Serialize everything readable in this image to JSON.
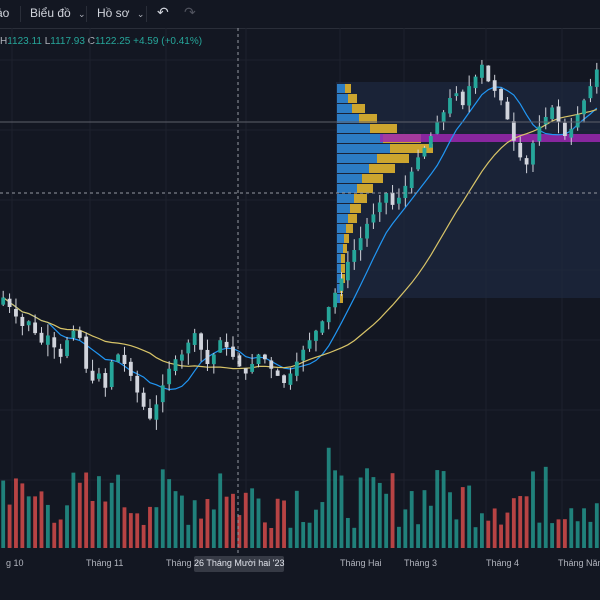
{
  "toolbar": {
    "item0": "ảo",
    "item1": "Biểu đồ",
    "item2": "Hồ sơ"
  },
  "legend": {
    "h_key": "H",
    "h_val": "1123.11",
    "l_key": "L",
    "l_val": "1117.93",
    "c_key": "C",
    "c_val": "1122.25",
    "change": "+4.59 (+0.41%)"
  },
  "colors": {
    "up": "#26a69a",
    "down": "#ef5350",
    "wick": "#d1d4dc",
    "ma_fast": "#2196f3",
    "ma_slow": "#d8c468",
    "vp_up": "#e0b42f",
    "vp_down": "#2f86d4",
    "vp_poc": "#9c27b0"
  },
  "crosshair": {
    "label": "26 Tháng Mười hai '23"
  },
  "chart_data": {
    "type": "candlestick",
    "x_ticks": [
      "g 10",
      "Tháng 11",
      "Tháng Mười h",
      "Tháng Hai",
      "Tháng 3",
      "Tháng 4",
      "Tháng Năm"
    ],
    "closes": [
      1120,
      1112,
      1104,
      1096,
      1100,
      1090,
      1082,
      1088,
      1078,
      1070,
      1084,
      1092,
      1086,
      1060,
      1050,
      1056,
      1044,
      1066,
      1072,
      1064,
      1054,
      1040,
      1028,
      1018,
      1030,
      1046,
      1060,
      1068,
      1072,
      1082,
      1090,
      1076,
      1064,
      1072,
      1084,
      1078,
      1070,
      1062,
      1056,
      1064,
      1072,
      1068,
      1060,
      1054,
      1048,
      1056,
      1066,
      1076,
      1084,
      1092,
      1100,
      1112,
      1124,
      1136,
      1150,
      1160,
      1170,
      1182,
      1190,
      1200,
      1208,
      1198,
      1204,
      1214,
      1226,
      1238,
      1246,
      1256,
      1268,
      1276,
      1288,
      1292,
      1282,
      1298,
      1306,
      1316,
      1302,
      1294,
      1286,
      1270,
      1252,
      1238,
      1232,
      1250,
      1264,
      1272,
      1280,
      1268,
      1256,
      1262,
      1274,
      1286,
      1298,
      1312
    ],
    "volume_note": "volume bars in bottom pane",
    "overlays": [
      "moving-average fast",
      "moving-average slow",
      "volume profile"
    ]
  }
}
